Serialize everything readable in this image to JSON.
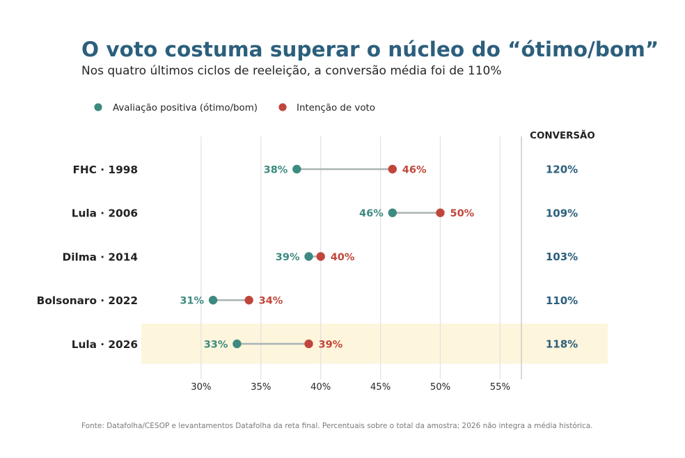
{
  "colors": {
    "title": "#2c5f7c",
    "approval": "#3d8a80",
    "vote": "#c0463b",
    "connector": "#a9b4b5",
    "grid": "#e2e2e2",
    "divider": "#cccccc",
    "highlight": "#fdf5dc",
    "text": "#222222",
    "footnote": "#7a7a7a"
  },
  "chart_data": {
    "type": "scatter",
    "title": "O voto costuma superar o núcleo do “ótimo/bom”",
    "subtitle": "Nos quatro últimos ciclos de reeleição, a conversão média foi de 110%",
    "categories": [
      "FHC · 1998",
      "Lula · 2006",
      "Dilma · 2014",
      "Bolsonaro · 2022",
      "Lula · 2026"
    ],
    "highlight": [
      false,
      false,
      false,
      false,
      true
    ],
    "series": [
      {
        "name": "Avaliação positiva (ótimo/bom)",
        "values": [
          38,
          46,
          39,
          31,
          33
        ],
        "labels": [
          "38%",
          "46%",
          "39%",
          "31%",
          "33%"
        ]
      },
      {
        "name": "Intenção de voto",
        "values": [
          46,
          50,
          40,
          34,
          39
        ],
        "labels": [
          "46%",
          "50%",
          "40%",
          "34%",
          "39%"
        ]
      }
    ],
    "conversion": {
      "header": "CONVERSÃO",
      "values": [
        "120%",
        "109%",
        "103%",
        "110%",
        "118%"
      ]
    },
    "xticks": [
      30,
      35,
      40,
      45,
      50,
      55
    ],
    "xtick_labels": [
      "30%",
      "35%",
      "40%",
      "45%",
      "50%",
      "55%"
    ],
    "xlim": [
      25,
      64
    ],
    "grid": "vertical",
    "legend": "top-left",
    "footnote": "Fonte: Datafolha/CESOP e levantamentos Datafolha da reta final. Percentuais sobre o total da amostra; 2026 não integra a média histórica."
  }
}
